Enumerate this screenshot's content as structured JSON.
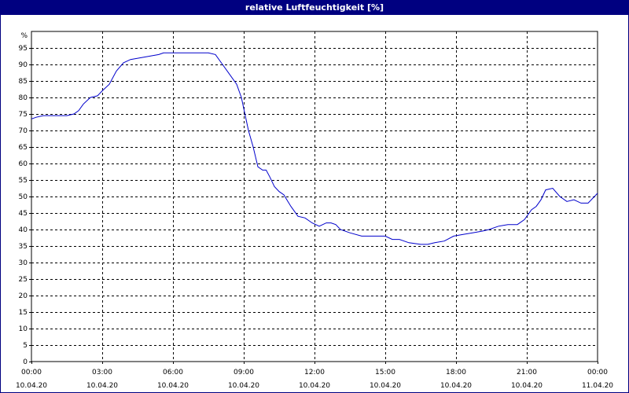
{
  "window": {
    "title": "relative Luftfeuchtigkeit [%]"
  },
  "colors": {
    "title_bar": "#000080",
    "line": "#0000cc",
    "grid": "#000000"
  },
  "chart_data": {
    "type": "line",
    "title": "relative Luftfeuchtigkeit [%]",
    "ylabel": "%",
    "xlabel": "",
    "ylim": [
      0,
      100
    ],
    "y_ticks": [
      0,
      5,
      10,
      15,
      20,
      25,
      30,
      35,
      40,
      45,
      50,
      55,
      60,
      65,
      70,
      75,
      80,
      85,
      90,
      95
    ],
    "x_range_hours": [
      0,
      24
    ],
    "x_tick_hours": [
      0,
      3,
      6,
      9,
      12,
      15,
      18,
      21,
      24
    ],
    "x_ticks": [
      {
        "time": "00:00",
        "date": "10.04.20"
      },
      {
        "time": "03:00",
        "date": "10.04.20"
      },
      {
        "time": "06:00",
        "date": "10.04.20"
      },
      {
        "time": "09:00",
        "date": "10.04.20"
      },
      {
        "time": "12:00",
        "date": "10.04.20"
      },
      {
        "time": "15:00",
        "date": "10.04.20"
      },
      {
        "time": "18:00",
        "date": "10.04.20"
      },
      {
        "time": "21:00",
        "date": "10.04.20"
      },
      {
        "time": "00:00",
        "date": "11.04.20"
      }
    ],
    "grid": true,
    "x": [
      0,
      0.2,
      0.5,
      1.0,
      1.5,
      1.8,
      2.0,
      2.2,
      2.5,
      2.8,
      3.0,
      3.3,
      3.6,
      3.9,
      4.2,
      4.6,
      5.0,
      5.4,
      5.6,
      6.0,
      6.5,
      7.0,
      7.5,
      7.8,
      8.1,
      8.4,
      8.7,
      8.9,
      9.05,
      9.2,
      9.4,
      9.6,
      9.8,
      9.95,
      10.1,
      10.3,
      10.5,
      10.7,
      11.0,
      11.3,
      11.6,
      11.9,
      12.2,
      12.5,
      12.7,
      12.9,
      13.1,
      13.5,
      14.0,
      14.5,
      15.0,
      15.3,
      15.6,
      16.0,
      16.5,
      16.8,
      17.1,
      17.5,
      17.9,
      18.3,
      18.7,
      19.1,
      19.4,
      19.8,
      20.2,
      20.6,
      20.9,
      21.2,
      21.4,
      21.6,
      21.8,
      22.1,
      22.4,
      22.7,
      23.0,
      23.3,
      23.6,
      23.8,
      24.0
    ],
    "series": [
      {
        "values": [
          73.5,
          74,
          74.5,
          74.5,
          74.5,
          75,
          76,
          78,
          80,
          80.5,
          82,
          84,
          88,
          90.5,
          91.5,
          92,
          92.5,
          93,
          93.5,
          93.5,
          93.5,
          93.5,
          93.5,
          93,
          90,
          87,
          84,
          80,
          75,
          70,
          65,
          59,
          58,
          58,
          56,
          53,
          51.5,
          50.5,
          47,
          44,
          43.5,
          42,
          41,
          42,
          42,
          41.5,
          40,
          39,
          38,
          38,
          38,
          37,
          37,
          36,
          35.5,
          35.5,
          36,
          36.5,
          38,
          38.5,
          39,
          39.5,
          40,
          41,
          41.5,
          41.5,
          43,
          46,
          47,
          49,
          52,
          52.5,
          50,
          48.5,
          49,
          48,
          48,
          49.5,
          51
        ]
      }
    ]
  }
}
